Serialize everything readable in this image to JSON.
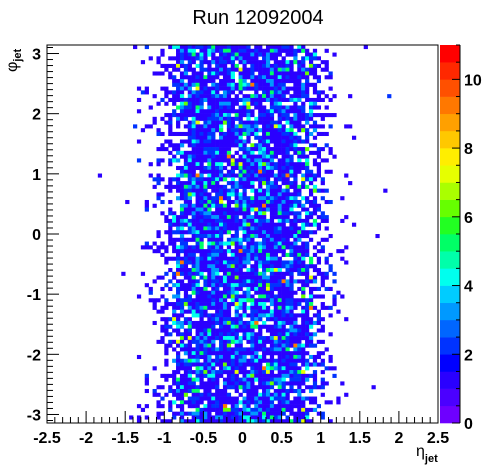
{
  "chart_data": {
    "type": "heatmap",
    "title": "Run 12092004",
    "xlabel": {
      "symbol": "η",
      "sub": "jet"
    },
    "ylabel": {
      "symbol": "φ",
      "sub": "jet"
    },
    "xlim": [
      -2.5,
      2.5
    ],
    "ylim": [
      -3.14159,
      3.14159
    ],
    "x_ticks": [
      "-2.5",
      "-2",
      "-1.5",
      "-1",
      "-0.5",
      "0",
      "0.5",
      "1",
      "1.5",
      "2",
      "2.5"
    ],
    "y_ticks": [
      "-3",
      "-2",
      "-1",
      "0",
      "1",
      "2",
      "3"
    ],
    "zlim": [
      0,
      11
    ],
    "z_ticks": [
      "0",
      "2",
      "4",
      "6",
      "8",
      "10"
    ],
    "bins": {
      "x": 100,
      "y": 100
    },
    "palette": [
      "#6e00ff",
      "#4b00ff",
      "#2a00ff",
      "#0000ff",
      "#0033ff",
      "#0066ff",
      "#0099ff",
      "#00ccff",
      "#00ffee",
      "#00ffaa",
      "#00ff66",
      "#22ff22",
      "#66ff00",
      "#aaff00",
      "#e6ff00",
      "#ffee00",
      "#ffc800",
      "#ffa000",
      "#ff7800",
      "#ff5000",
      "#ff2800",
      "#ff0000"
    ],
    "density_profile": {
      "eta": [
        -1.5,
        -1.2,
        -1.0,
        -0.8,
        -0.5,
        0.0,
        0.5,
        0.8,
        1.0,
        1.2,
        1.5
      ],
      "relative": [
        0.0,
        0.08,
        0.35,
        0.75,
        0.95,
        0.85,
        0.95,
        0.75,
        0.35,
        0.08,
        0.0
      ]
    },
    "max_count": 11
  }
}
